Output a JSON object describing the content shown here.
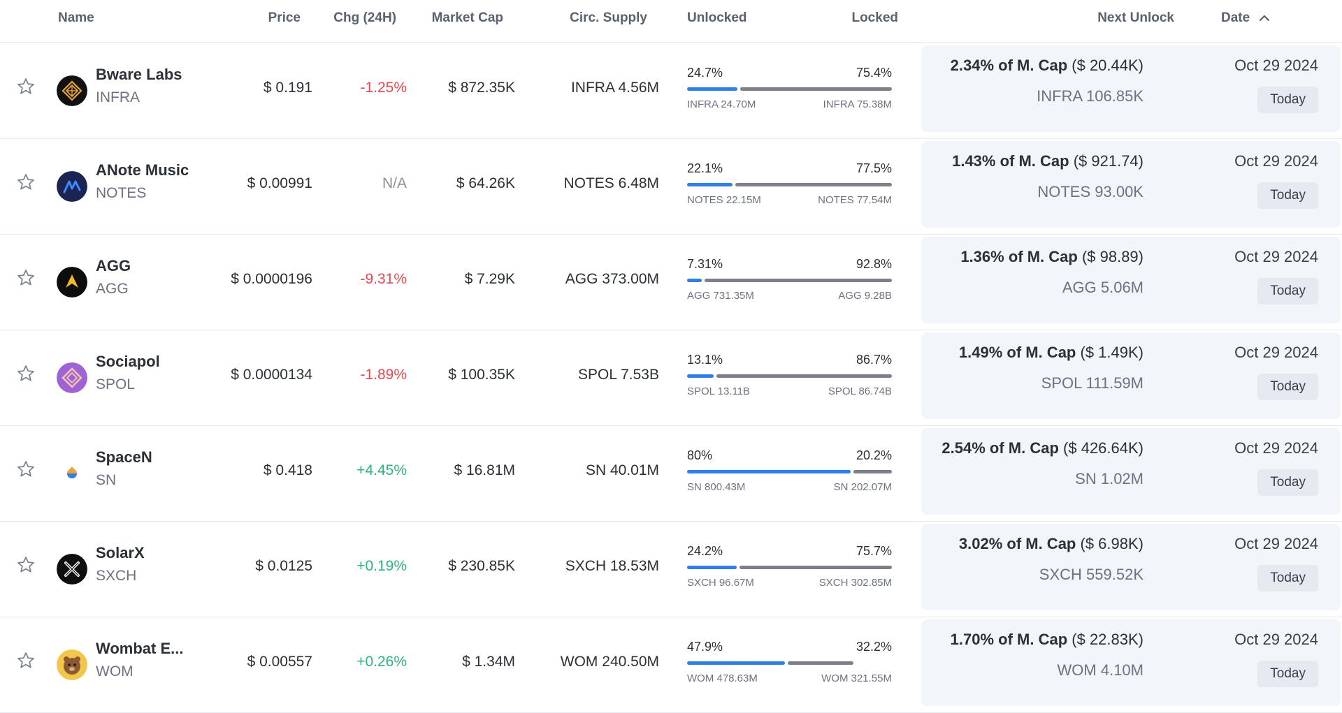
{
  "header": {
    "name": "Name",
    "price": "Price",
    "change": "Chg (24H)",
    "market_cap": "Market Cap",
    "circ_supply": "Circ. Supply",
    "unlocked": "Unlocked",
    "locked": "Locked",
    "next_unlock": "Next Unlock",
    "date": "Date"
  },
  "colors": {
    "negative": "#e5484d",
    "positive": "#2fb37a",
    "bar_unlocked": "#2f7fe8",
    "bar_locked": "#7d8089"
  },
  "rows": [
    {
      "name": "Bware Labs",
      "symbol": "INFRA",
      "logo_icon": "bware-labs-logo-icon",
      "price": "$ 0.191",
      "change": "-1.25%",
      "change_dir": "neg",
      "market_cap": "$ 872.35K",
      "circ_supply": "INFRA 4.56M",
      "unlocked_pct": "24.7%",
      "locked_pct": "75.4%",
      "unlocked_fraction": 0.247,
      "locked_fraction": 0.754,
      "unlocked_amount": "INFRA 24.70M",
      "locked_amount": "INFRA 75.38M",
      "next_unlock_pct": "2.34% of M. Cap",
      "next_unlock_value": "($ 20.44K)",
      "next_unlock_amount": "INFRA 106.85K",
      "date": "Oct 29 2024",
      "badge": "Today"
    },
    {
      "name": "ANote Music",
      "symbol": "NOTES",
      "logo_icon": "anote-music-logo-icon",
      "price": "$ 0.00991",
      "change": "N/A",
      "change_dir": "na",
      "market_cap": "$ 64.26K",
      "circ_supply": "NOTES 6.48M",
      "unlocked_pct": "22.1%",
      "locked_pct": "77.5%",
      "unlocked_fraction": 0.221,
      "locked_fraction": 0.775,
      "unlocked_amount": "NOTES 22.15M",
      "locked_amount": "NOTES 77.54M",
      "next_unlock_pct": "1.43% of M. Cap",
      "next_unlock_value": "($ 921.74)",
      "next_unlock_amount": "NOTES 93.00K",
      "date": "Oct 29 2024",
      "badge": "Today"
    },
    {
      "name": "AGG",
      "symbol": "AGG",
      "logo_icon": "agg-logo-icon",
      "price": "$ 0.0000196",
      "change": "-9.31%",
      "change_dir": "neg",
      "market_cap": "$ 7.29K",
      "circ_supply": "AGG 373.00M",
      "unlocked_pct": "7.31%",
      "locked_pct": "92.8%",
      "unlocked_fraction": 0.0731,
      "locked_fraction": 0.928,
      "unlocked_amount": "AGG 731.35M",
      "locked_amount": "AGG 9.28B",
      "next_unlock_pct": "1.36% of M. Cap",
      "next_unlock_value": "($ 98.89)",
      "next_unlock_amount": "AGG 5.06M",
      "date": "Oct 29 2024",
      "badge": "Today"
    },
    {
      "name": "Sociapol",
      "symbol": "SPOL",
      "logo_icon": "sociapol-logo-icon",
      "price": "$ 0.0000134",
      "change": "-1.89%",
      "change_dir": "neg",
      "market_cap": "$ 100.35K",
      "circ_supply": "SPOL 7.53B",
      "unlocked_pct": "13.1%",
      "locked_pct": "86.7%",
      "unlocked_fraction": 0.131,
      "locked_fraction": 0.867,
      "unlocked_amount": "SPOL 13.11B",
      "locked_amount": "SPOL 86.74B",
      "next_unlock_pct": "1.49% of M. Cap",
      "next_unlock_value": "($ 1.49K)",
      "next_unlock_amount": "SPOL 111.59M",
      "date": "Oct 29 2024",
      "badge": "Today"
    },
    {
      "name": "SpaceN",
      "symbol": "SN",
      "logo_icon": "spacen-logo-icon",
      "price": "$ 0.418",
      "change": "+4.45%",
      "change_dir": "pos",
      "market_cap": "$ 16.81M",
      "circ_supply": "SN 40.01M",
      "unlocked_pct": "80%",
      "locked_pct": "20.2%",
      "unlocked_fraction": 0.8,
      "locked_fraction": 0.202,
      "unlocked_amount": "SN 800.43M",
      "locked_amount": "SN 202.07M",
      "next_unlock_pct": "2.54% of M. Cap",
      "next_unlock_value": "($ 426.64K)",
      "next_unlock_amount": "SN 1.02M",
      "date": "Oct 29 2024",
      "badge": "Today"
    },
    {
      "name": "SolarX",
      "symbol": "SXCH",
      "logo_icon": "solarx-logo-icon",
      "price": "$ 0.0125",
      "change": "+0.19%",
      "change_dir": "pos",
      "market_cap": "$ 230.85K",
      "circ_supply": "SXCH 18.53M",
      "unlocked_pct": "24.2%",
      "locked_pct": "75.7%",
      "unlocked_fraction": 0.242,
      "locked_fraction": 0.757,
      "unlocked_amount": "SXCH 96.67M",
      "locked_amount": "SXCH 302.85M",
      "next_unlock_pct": "3.02% of M. Cap",
      "next_unlock_value": "($ 6.98K)",
      "next_unlock_amount": "SXCH 559.52K",
      "date": "Oct 29 2024",
      "badge": "Today"
    },
    {
      "name": "Wombat E...",
      "symbol": "WOM",
      "logo_icon": "wombat-logo-icon",
      "price": "$ 0.00557",
      "change": "+0.26%",
      "change_dir": "pos",
      "market_cap": "$ 1.34M",
      "circ_supply": "WOM 240.50M",
      "unlocked_pct": "47.9%",
      "locked_pct": "32.2%",
      "unlocked_fraction": 0.479,
      "locked_fraction": 0.322,
      "unlocked_amount": "WOM 478.63M",
      "locked_amount": "WOM 321.55M",
      "next_unlock_pct": "1.70% of M. Cap",
      "next_unlock_value": "($ 22.83K)",
      "next_unlock_amount": "WOM 4.10M",
      "date": "Oct 29 2024",
      "badge": "Today"
    }
  ]
}
